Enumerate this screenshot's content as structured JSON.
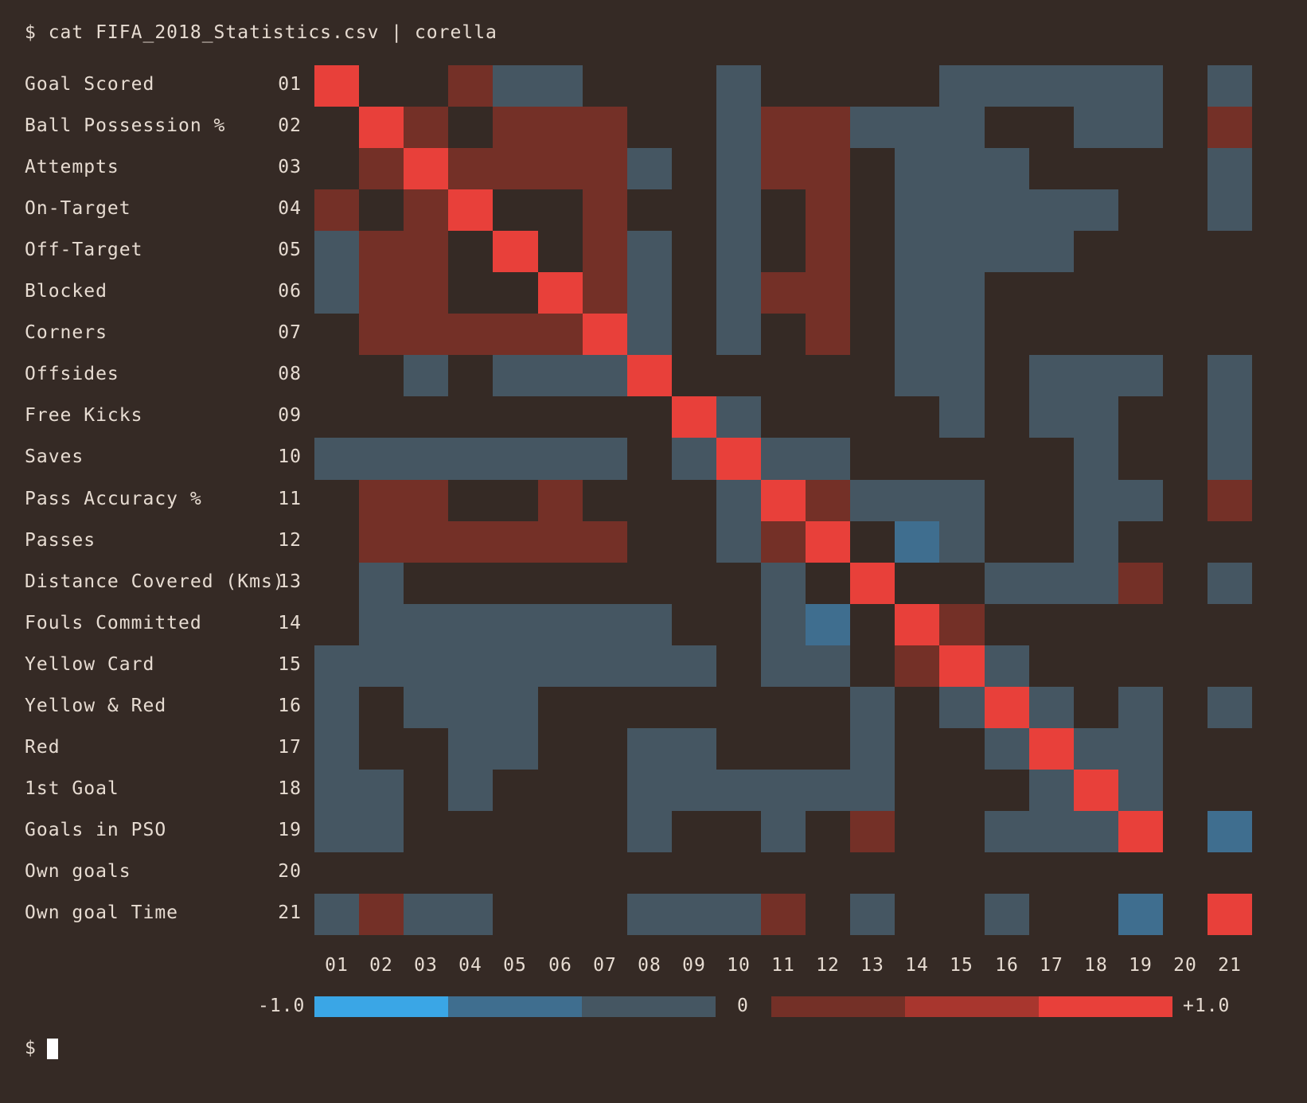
{
  "command": "$ cat FIFA_2018_Statistics.csv | corella",
  "prompt": "$",
  "colors": {
    "background": "#352a25",
    "text": "#e7dcd2",
    "strong_positive": "#e8403a",
    "medium_positive": "#a8362e",
    "weak_positive": "#743027",
    "weak_negative": "#455662",
    "medium_negative": "#3f6e8f",
    "strong_negative": "#3aa6e6"
  },
  "legend": {
    "min_label": "-1.0",
    "zero_label": "0",
    "max_label": "+1.0"
  },
  "chart_data": {
    "type": "heatmap",
    "row_labels": [
      "Goal Scored",
      "Ball Possession %",
      "Attempts",
      "On-Target",
      "Off-Target",
      "Blocked",
      "Corners",
      "Offsides",
      "Free Kicks",
      "Saves",
      "Pass Accuracy %",
      "Passes",
      "Distance Covered (Kms)",
      "Fouls Committed",
      "Yellow Card",
      "Yellow & Red",
      "Red",
      "1st Goal",
      "Goals in PSO",
      "Own goals",
      "Own goal Time"
    ],
    "row_numbers": [
      "01",
      "02",
      "03",
      "04",
      "05",
      "06",
      "07",
      "08",
      "09",
      "10",
      "11",
      "12",
      "13",
      "14",
      "15",
      "16",
      "17",
      "18",
      "19",
      "20",
      "21"
    ],
    "col_labels": [
      "01",
      "02",
      "03",
      "04",
      "05",
      "06",
      "07",
      "08",
      "09",
      "10",
      "11",
      "12",
      "13",
      "14",
      "15",
      "16",
      "17",
      "18",
      "19",
      "20",
      "21"
    ],
    "value_range": [
      -1.0,
      1.0
    ],
    "level_scale": "cells quantised to levels: 3=strong positive, 2=medium positive, 1=weak positive, 0=none, -1=weak negative, -2=medium negative, -3=strong negative",
    "levels": [
      [
        3,
        0,
        0,
        1,
        -1,
        -1,
        0,
        0,
        0,
        -1,
        0,
        0,
        0,
        0,
        -1,
        -1,
        -1,
        -1,
        -1,
        0,
        -1
      ],
      [
        0,
        3,
        1,
        0,
        1,
        1,
        1,
        0,
        0,
        -1,
        1,
        1,
        -1,
        -1,
        -1,
        0,
        0,
        -1,
        -1,
        0,
        1
      ],
      [
        0,
        1,
        3,
        1,
        1,
        1,
        1,
        -1,
        0,
        -1,
        1,
        1,
        0,
        -1,
        -1,
        -1,
        0,
        0,
        0,
        0,
        -1
      ],
      [
        1,
        0,
        1,
        3,
        0,
        0,
        1,
        0,
        0,
        -1,
        0,
        1,
        0,
        -1,
        -1,
        -1,
        -1,
        -1,
        0,
        0,
        -1
      ],
      [
        -1,
        1,
        1,
        0,
        3,
        0,
        1,
        -1,
        0,
        -1,
        0,
        1,
        0,
        -1,
        -1,
        -1,
        -1,
        0,
        0,
        0,
        0
      ],
      [
        -1,
        1,
        1,
        0,
        0,
        3,
        1,
        -1,
        0,
        -1,
        1,
        1,
        0,
        -1,
        -1,
        0,
        0,
        0,
        0,
        0,
        0
      ],
      [
        0,
        1,
        1,
        1,
        1,
        1,
        3,
        -1,
        0,
        -1,
        0,
        1,
        0,
        -1,
        -1,
        0,
        0,
        0,
        0,
        0,
        0
      ],
      [
        0,
        0,
        -1,
        0,
        -1,
        -1,
        -1,
        3,
        0,
        0,
        0,
        0,
        0,
        -1,
        -1,
        0,
        -1,
        -1,
        -1,
        0,
        -1
      ],
      [
        0,
        0,
        0,
        0,
        0,
        0,
        0,
        0,
        3,
        -1,
        0,
        0,
        0,
        0,
        -1,
        0,
        -1,
        -1,
        0,
        0,
        -1
      ],
      [
        -1,
        -1,
        -1,
        -1,
        -1,
        -1,
        -1,
        0,
        -1,
        3,
        -1,
        -1,
        0,
        0,
        0,
        0,
        0,
        -1,
        0,
        0,
        -1
      ],
      [
        0,
        1,
        1,
        0,
        0,
        1,
        0,
        0,
        0,
        -1,
        3,
        1,
        -1,
        -1,
        -1,
        0,
        0,
        -1,
        -1,
        0,
        1
      ],
      [
        0,
        1,
        1,
        1,
        1,
        1,
        1,
        0,
        0,
        -1,
        1,
        3,
        0,
        -2,
        -1,
        0,
        0,
        -1,
        0,
        0,
        0
      ],
      [
        0,
        -1,
        0,
        0,
        0,
        0,
        0,
        0,
        0,
        0,
        -1,
        0,
        3,
        0,
        0,
        -1,
        -1,
        -1,
        1,
        0,
        -1
      ],
      [
        0,
        -1,
        -1,
        -1,
        -1,
        -1,
        -1,
        -1,
        0,
        0,
        -1,
        -2,
        0,
        3,
        1,
        0,
        0,
        0,
        0,
        0,
        0
      ],
      [
        -1,
        -1,
        -1,
        -1,
        -1,
        -1,
        -1,
        -1,
        -1,
        0,
        -1,
        -1,
        0,
        1,
        3,
        -1,
        0,
        0,
        0,
        0,
        0
      ],
      [
        -1,
        0,
        -1,
        -1,
        -1,
        0,
        0,
        0,
        0,
        0,
        0,
        0,
        -1,
        0,
        -1,
        3,
        -1,
        0,
        -1,
        0,
        -1
      ],
      [
        -1,
        0,
        0,
        -1,
        -1,
        0,
        0,
        -1,
        -1,
        0,
        0,
        0,
        -1,
        0,
        0,
        -1,
        3,
        -1,
        -1,
        0,
        0
      ],
      [
        -1,
        -1,
        0,
        -1,
        0,
        0,
        0,
        -1,
        -1,
        -1,
        -1,
        -1,
        -1,
        0,
        0,
        0,
        -1,
        3,
        -1,
        0,
        0
      ],
      [
        -1,
        -1,
        0,
        0,
        0,
        0,
        0,
        -1,
        0,
        0,
        -1,
        0,
        1,
        0,
        0,
        -1,
        -1,
        -1,
        3,
        0,
        -2
      ],
      [
        0,
        0,
        0,
        0,
        0,
        0,
        0,
        0,
        0,
        0,
        0,
        0,
        0,
        0,
        0,
        0,
        0,
        0,
        0,
        0,
        0
      ],
      [
        -1,
        1,
        -1,
        -1,
        0,
        0,
        0,
        -1,
        -1,
        -1,
        1,
        0,
        -1,
        0,
        0,
        -1,
        0,
        0,
        -2,
        0,
        3
      ]
    ]
  }
}
